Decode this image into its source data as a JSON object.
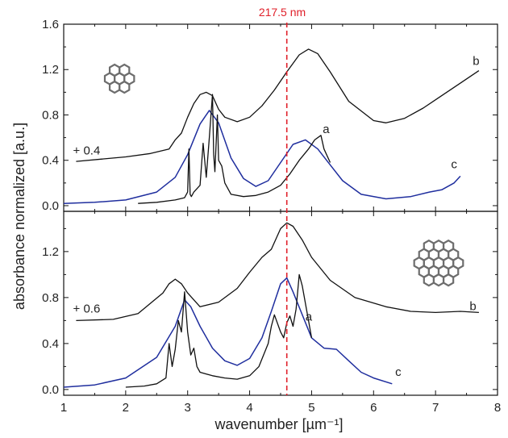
{
  "chart_data": {
    "type": "line",
    "xlabel": "wavenumber [µm⁻¹]",
    "ylabel": "absorbance normalized [a.u.]",
    "colors": {
      "black": "#111111",
      "blue": "#1f2e9e",
      "ref": "#e0202a"
    },
    "reference_line": {
      "x": 4.6,
      "label": "217.5 nm"
    },
    "panels": [
      {
        "position": "top",
        "xlim": [
          1,
          8
        ],
        "ylim": [
          -0.05,
          1.6
        ],
        "xticks": [
          1,
          2,
          3,
          4,
          5,
          6,
          7,
          8
        ],
        "yticks": [
          0.0,
          0.4,
          0.8,
          1.2,
          1.6
        ],
        "ytick_labels": [
          "0.0",
          "0.4",
          "0.8",
          "1.2",
          "1.6"
        ],
        "offset_label": "+ 0.4",
        "offset_label_x": 1.15,
        "offset_label_y": 0.45,
        "molecule_icon": "coronene-molecule-icon",
        "series": [
          {
            "label": "b",
            "color": "black",
            "label_x": 7.6,
            "label_y": 1.24,
            "x": [
              1.2,
              1.6,
              2.0,
              2.4,
              2.7,
              2.8,
              2.9,
              3.0,
              3.1,
              3.2,
              3.3,
              3.4,
              3.5,
              3.6,
              3.8,
              4.0,
              4.2,
              4.4,
              4.6,
              4.8,
              4.95,
              5.1,
              5.3,
              5.6,
              6.0,
              6.2,
              6.5,
              6.8,
              7.1,
              7.4,
              7.7
            ],
            "y": [
              0.39,
              0.41,
              0.43,
              0.46,
              0.5,
              0.58,
              0.64,
              0.78,
              0.9,
              0.98,
              1.0,
              0.97,
              0.85,
              0.78,
              0.74,
              0.78,
              0.88,
              1.02,
              1.18,
              1.33,
              1.38,
              1.34,
              1.18,
              0.92,
              0.75,
              0.73,
              0.77,
              0.86,
              0.97,
              1.08,
              1.19
            ]
          },
          {
            "label": "c",
            "color": "blue",
            "label_x": 7.25,
            "label_y": 0.33,
            "x": [
              1.0,
              1.5,
              2.0,
              2.5,
              2.8,
              3.0,
              3.2,
              3.35,
              3.5,
              3.7,
              3.9,
              4.1,
              4.3,
              4.5,
              4.7,
              4.9,
              5.1,
              5.3,
              5.5,
              5.8,
              6.2,
              6.6,
              6.9,
              7.1,
              7.3,
              7.4
            ],
            "y": [
              0.02,
              0.03,
              0.05,
              0.12,
              0.25,
              0.45,
              0.72,
              0.84,
              0.73,
              0.42,
              0.24,
              0.17,
              0.22,
              0.38,
              0.54,
              0.58,
              0.5,
              0.36,
              0.22,
              0.1,
              0.06,
              0.08,
              0.12,
              0.14,
              0.2,
              0.26
            ]
          },
          {
            "label": "a",
            "color": "black",
            "label_x": 5.18,
            "label_y": 0.64,
            "x": [
              2.2,
              2.5,
              2.8,
              2.95,
              3.0,
              3.02,
              3.04,
              3.06,
              3.1,
              3.2,
              3.25,
              3.3,
              3.35,
              3.4,
              3.42,
              3.44,
              3.48,
              3.5,
              3.55,
              3.6,
              3.7,
              3.9,
              4.1,
              4.3,
              4.5,
              4.65,
              4.8,
              4.95,
              5.05,
              5.15,
              5.2,
              5.3
            ],
            "y": [
              0.02,
              0.03,
              0.05,
              0.07,
              0.12,
              0.5,
              0.1,
              0.08,
              0.12,
              0.18,
              0.55,
              0.25,
              0.6,
              0.98,
              0.45,
              0.3,
              0.8,
              0.4,
              0.35,
              0.2,
              0.1,
              0.08,
              0.09,
              0.12,
              0.18,
              0.28,
              0.4,
              0.5,
              0.58,
              0.62,
              0.5,
              0.38
            ]
          }
        ]
      },
      {
        "position": "bottom",
        "xlim": [
          1,
          8
        ],
        "ylim": [
          -0.05,
          1.55
        ],
        "xticks": [
          1,
          2,
          3,
          4,
          5,
          6,
          7,
          8
        ],
        "yticks": [
          0.0,
          0.4,
          0.8,
          1.2
        ],
        "ytick_labels": [
          "0.0",
          "0.4",
          "0.8",
          "1.2"
        ],
        "offset_label": "+ 0.6",
        "offset_label_x": 1.15,
        "offset_label_y": 0.67,
        "molecule_icon": "circumcoronene-molecule-icon",
        "series": [
          {
            "label": "b",
            "color": "black",
            "label_x": 7.55,
            "label_y": 0.69,
            "x": [
              1.2,
              1.8,
              2.2,
              2.4,
              2.6,
              2.7,
              2.8,
              2.9,
              3.0,
              3.2,
              3.5,
              3.8,
              4.0,
              4.2,
              4.35,
              4.5,
              4.6,
              4.7,
              4.85,
              5.0,
              5.3,
              5.7,
              6.2,
              6.6,
              7.0,
              7.4,
              7.7
            ],
            "y": [
              0.6,
              0.61,
              0.66,
              0.75,
              0.84,
              0.92,
              0.96,
              0.92,
              0.84,
              0.72,
              0.76,
              0.88,
              1.02,
              1.15,
              1.22,
              1.4,
              1.45,
              1.42,
              1.3,
              1.15,
              0.95,
              0.8,
              0.72,
              0.68,
              0.67,
              0.68,
              0.67
            ]
          },
          {
            "label": "c",
            "color": "blue",
            "label_x": 6.35,
            "label_y": 0.12,
            "x": [
              1.0,
              1.5,
              2.0,
              2.5,
              2.8,
              2.95,
              3.05,
              3.2,
              3.4,
              3.6,
              3.8,
              4.0,
              4.2,
              4.35,
              4.5,
              4.6,
              4.7,
              4.85,
              5.0,
              5.2,
              5.4,
              5.6,
              5.8,
              6.0,
              6.3
            ],
            "y": [
              0.02,
              0.04,
              0.1,
              0.28,
              0.55,
              0.78,
              0.72,
              0.55,
              0.36,
              0.25,
              0.21,
              0.27,
              0.45,
              0.68,
              0.92,
              0.97,
              0.85,
              0.65,
              0.45,
              0.36,
              0.35,
              0.25,
              0.15,
              0.1,
              0.05
            ]
          },
          {
            "label": "a",
            "color": "black",
            "label_x": 4.9,
            "label_y": 0.6,
            "x": [
              2.0,
              2.3,
              2.5,
              2.65,
              2.7,
              2.75,
              2.8,
              2.85,
              2.9,
              2.95,
              3.0,
              3.05,
              3.1,
              3.15,
              3.2,
              3.4,
              3.6,
              3.8,
              4.0,
              4.15,
              4.3,
              4.35,
              4.4,
              4.5,
              4.55,
              4.6,
              4.65,
              4.7,
              4.75,
              4.8,
              4.85,
              4.95,
              5.0
            ],
            "y": [
              0.02,
              0.03,
              0.05,
              0.1,
              0.4,
              0.2,
              0.35,
              0.6,
              0.5,
              0.85,
              0.5,
              0.3,
              0.36,
              0.2,
              0.15,
              0.12,
              0.1,
              0.09,
              0.12,
              0.2,
              0.4,
              0.55,
              0.65,
              0.5,
              0.45,
              0.58,
              0.64,
              0.55,
              0.7,
              1.0,
              0.9,
              0.6,
              0.45
            ]
          }
        ]
      }
    ]
  }
}
